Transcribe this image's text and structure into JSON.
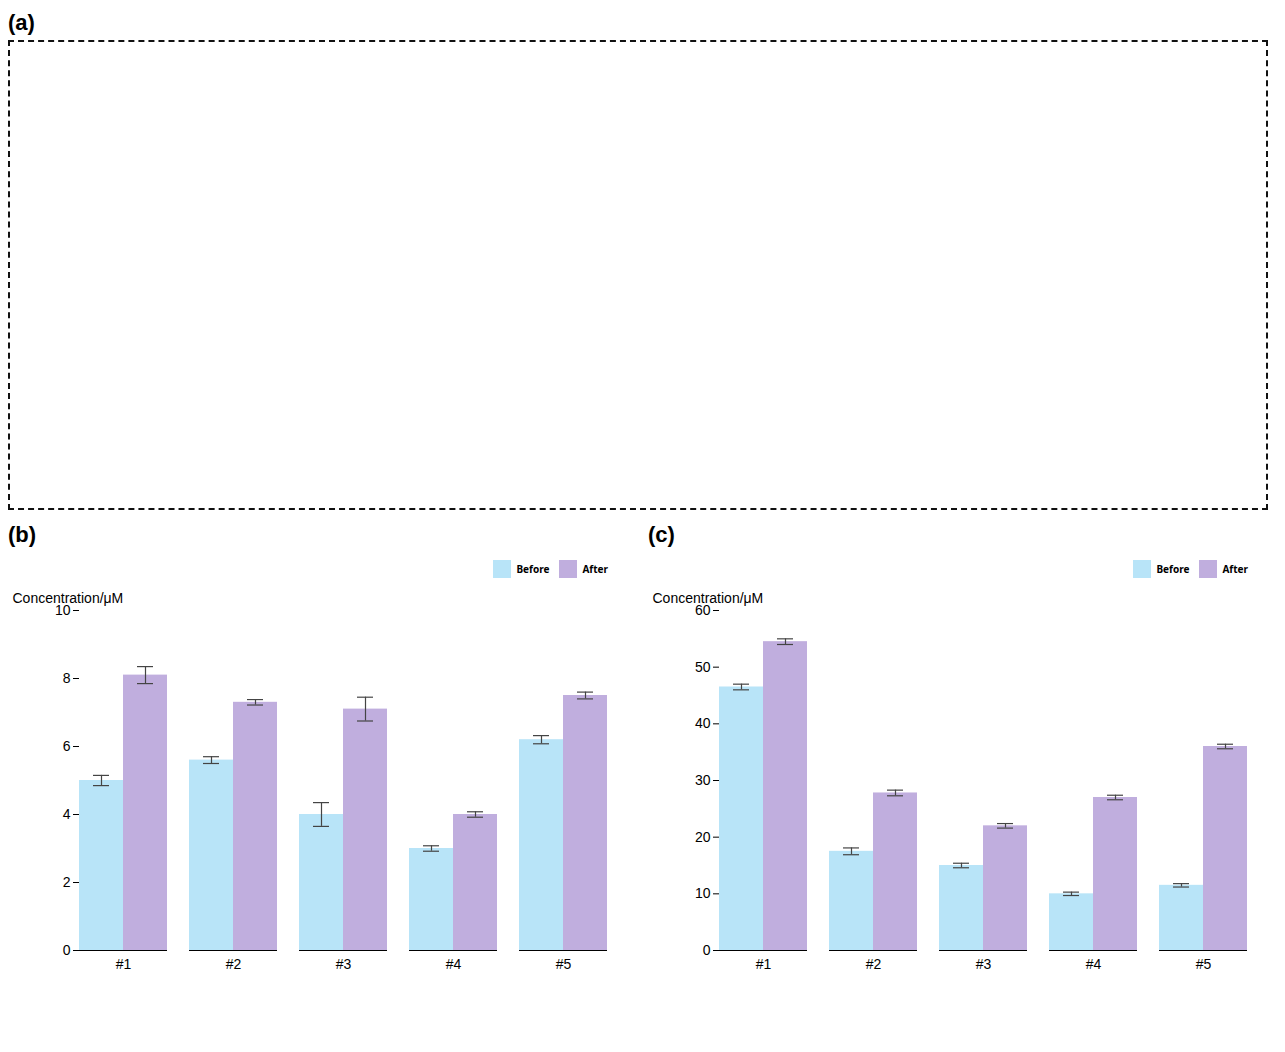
{
  "chart_data": [
    {
      "type": "image",
      "title": "(a)"
    },
    {
      "type": "bar",
      "title": "(b)",
      "ylabel": "Concentration/μM",
      "categories": [
        "#1",
        "#2",
        "#3",
        "#4",
        "#5"
      ],
      "series": [
        {
          "name": "Before",
          "color": "#b8e4f8",
          "values": [
            5.0,
            5.6,
            4.0,
            3.0,
            6.2
          ],
          "errors": [
            0.15,
            0.1,
            0.35,
            0.08,
            0.12
          ]
        },
        {
          "name": "After",
          "color": "#c0aede",
          "values": [
            8.1,
            7.3,
            7.1,
            4.0,
            7.5
          ],
          "errors": [
            0.25,
            0.08,
            0.35,
            0.08,
            0.1
          ]
        }
      ],
      "ylim": [
        0,
        10
      ],
      "yticks": [
        0,
        2,
        4,
        6,
        8,
        10
      ],
      "grid": false,
      "legend": "upper right"
    },
    {
      "type": "bar",
      "title": "(c)",
      "ylabel": "Concentration/μM",
      "categories": [
        "#1",
        "#2",
        "#3",
        "#4",
        "#5"
      ],
      "series": [
        {
          "name": "Before",
          "color": "#b8e4f8",
          "values": [
            46.5,
            17.5,
            15.0,
            10.0,
            11.5
          ],
          "errors": [
            0.5,
            0.6,
            0.4,
            0.3,
            0.3
          ]
        },
        {
          "name": "After",
          "color": "#c0aede",
          "values": [
            54.5,
            27.8,
            22.0,
            27.0,
            36.0
          ],
          "errors": [
            0.5,
            0.5,
            0.4,
            0.4,
            0.4
          ]
        }
      ],
      "ylim": [
        0,
        60
      ],
      "yticks": [
        0,
        10,
        20,
        30,
        40,
        50,
        60
      ],
      "grid": false,
      "legend": "upper right"
    }
  ]
}
